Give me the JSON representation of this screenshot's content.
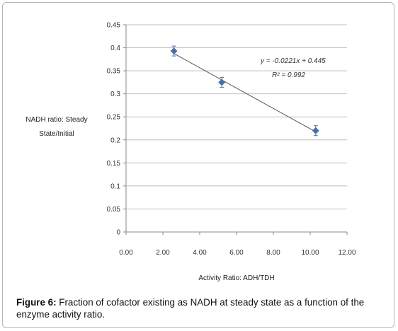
{
  "chart_data": {
    "type": "scatter",
    "title": "",
    "xlabel": "Activity Ratio: ADH/TDH",
    "ylabel_lines": [
      "NADH ratio: Steady",
      "State/Initial"
    ],
    "xlim": [
      0,
      12
    ],
    "ylim": [
      0,
      0.45
    ],
    "x_ticks": [
      "0.00",
      "2.00",
      "4.00",
      "6.00",
      "8.00",
      "10.00",
      "12.00"
    ],
    "y_ticks": [
      "0",
      "0.05",
      "0.1",
      "0.15",
      "0.2",
      "0.25",
      "0.3",
      "0.35",
      "0.4",
      "0.45"
    ],
    "grid": true,
    "points": [
      {
        "x": 2.6,
        "y": 0.393
      },
      {
        "x": 5.2,
        "y": 0.325
      },
      {
        "x": 10.3,
        "y": 0.22
      }
    ],
    "trendline": {
      "type": "linear",
      "slope": -0.0221,
      "intercept": 0.445
    },
    "annotations": {
      "equation": "y = -0.0221x + 0.445",
      "r_squared": "R² = 0.992"
    },
    "colors": {
      "marker": "#4a6fa8",
      "grid": "#bfbfbf",
      "trend": "#555555"
    }
  },
  "caption": {
    "label": "Figure 6:",
    "text": " Fraction of cofactor existing as NADH at steady state as a function of the enzyme activity ratio."
  }
}
